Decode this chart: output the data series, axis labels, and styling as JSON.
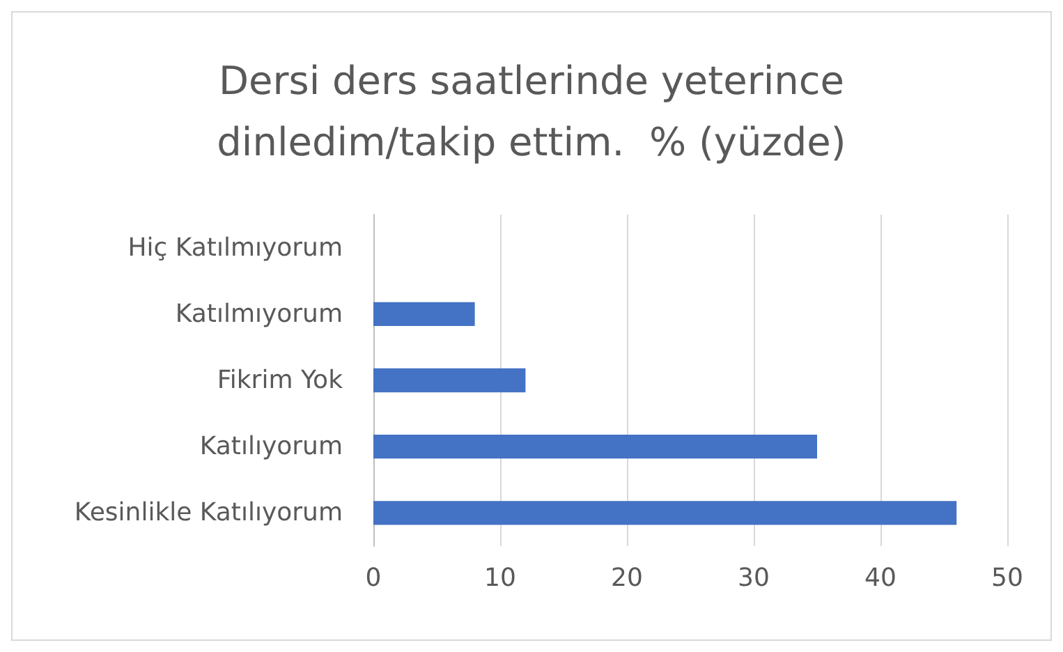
{
  "chart_data": {
    "type": "bar",
    "orientation": "horizontal",
    "title": "Dersi ders saatlerinde yeterince\ndinledim/takip ettim.  % (yüzde)",
    "categories": [
      "Hiç Katılmıyorum",
      "Katılmıyorum",
      "Fikrim Yok",
      "Katılıyorum",
      "Kesinlikle Katılıyorum"
    ],
    "values": [
      0,
      8,
      12,
      35,
      46
    ],
    "color": "#4472c4",
    "xlim": [
      0,
      50
    ],
    "xticks": [
      0,
      10,
      20,
      30,
      40,
      50
    ],
    "grid": "x"
  }
}
